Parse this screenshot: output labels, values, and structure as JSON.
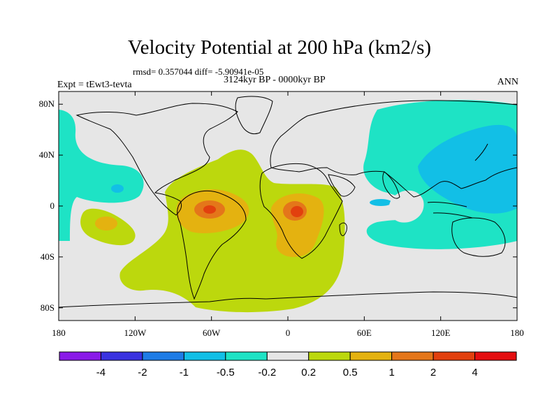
{
  "title": "Velocity Potential at 200 hPa (km2/s)",
  "stats": "rmsd= 0.357044 diff= -5.90941e-05",
  "experiment": "Expt = tEwt3-tevta",
  "period": "3124kyr BP - 0000kyr BP",
  "season": "ANN",
  "axes": {
    "lon_ticks": [
      {
        "lon": -180,
        "label": "180"
      },
      {
        "lon": -120,
        "label": "120W"
      },
      {
        "lon": -60,
        "label": "60W"
      },
      {
        "lon": 0,
        "label": "0"
      },
      {
        "lon": 60,
        "label": "60E"
      },
      {
        "lon": 120,
        "label": "120E"
      },
      {
        "lon": 180,
        "label": "180"
      }
    ],
    "lat_ticks": [
      {
        "lat": 80,
        "label": "80N"
      },
      {
        "lat": 40,
        "label": "40N"
      },
      {
        "lat": 0,
        "label": "0"
      },
      {
        "lat": -40,
        "label": "40S"
      },
      {
        "lat": -80,
        "label": "80S"
      }
    ],
    "lon_range": [
      -180,
      180
    ],
    "lat_range": [
      -90,
      90
    ]
  },
  "colorbar": {
    "colors": [
      "#8a1ae8",
      "#3a32e0",
      "#1e7ce6",
      "#12bfe6",
      "#1ee3c5",
      "#e6e6e6",
      "#bcd80d",
      "#e4b210",
      "#e4761a",
      "#e2400e",
      "#e40e10"
    ],
    "labels": [
      "-4",
      "-2",
      "-1",
      "-0.5",
      "-0.2",
      "0.2",
      "0.5",
      "1",
      "2",
      "4"
    ]
  },
  "colors": {
    "background": "#e6e6e6",
    "level_neg_0_2": "#1ee3c5",
    "level_neg_0_5": "#12bfe6",
    "level_pos_0_2": "#bcd80d",
    "level_pos_0_5": "#e4b210",
    "level_pos_1": "#e4761a",
    "level_pos_2": "#e2400e"
  }
}
